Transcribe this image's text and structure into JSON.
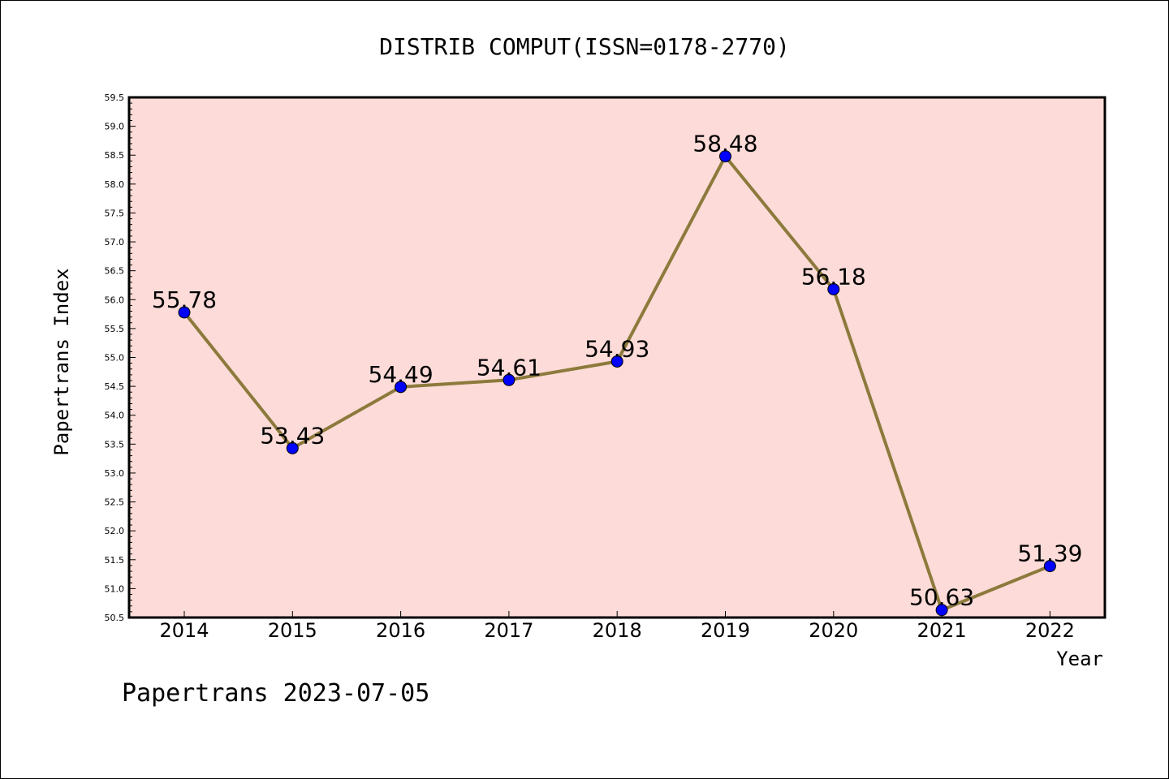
{
  "chart_data": {
    "type": "line",
    "title": "DISTRIB COMPUT(ISSN=0178-2770)",
    "xlabel": "Year",
    "ylabel": "Papertrans Index",
    "footer": "Papertrans 2023-07-05",
    "x": [
      "2014",
      "2015",
      "2016",
      "2017",
      "2018",
      "2019",
      "2020",
      "2021",
      "2022"
    ],
    "series": [
      {
        "values": [
          55.78,
          53.43,
          54.49,
          54.61,
          54.93,
          58.48,
          56.18,
          50.63,
          51.39
        ],
        "labels": [
          "55.78",
          "53.43",
          "54.49",
          "54.61",
          "54.93",
          "58.48",
          "56.18",
          "50.63",
          "51.39"
        ]
      }
    ],
    "ylim": [
      50.5,
      59.5
    ],
    "yticks": [
      "50.5",
      "51.0",
      "51.5",
      "52.0",
      "52.5",
      "53.0",
      "53.5",
      "54.0",
      "54.5",
      "55.0",
      "55.5",
      "56.0",
      "56.5",
      "57.0",
      "57.5",
      "58.0",
      "58.5",
      "59.0",
      "59.5"
    ],
    "grid": false,
    "colors": {
      "plot_background": "#fddbd8",
      "line": "#8c7a3c",
      "marker": "#0000ff",
      "axis": "#000000"
    }
  }
}
